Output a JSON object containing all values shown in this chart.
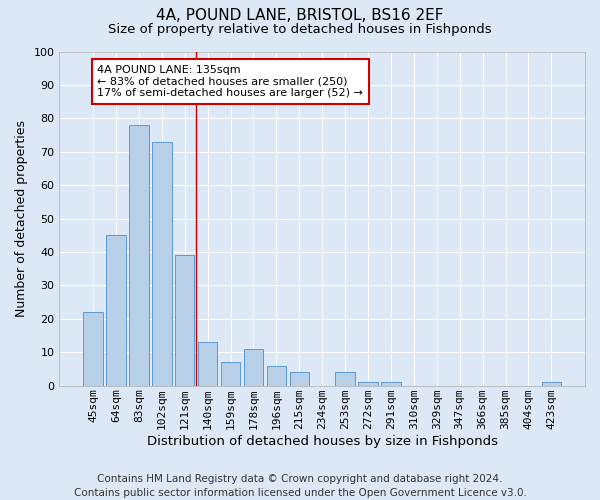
{
  "title": "4A, POUND LANE, BRISTOL, BS16 2EF",
  "subtitle": "Size of property relative to detached houses in Fishponds",
  "xlabel": "Distribution of detached houses by size in Fishponds",
  "ylabel": "Number of detached properties",
  "categories": [
    "45sqm",
    "64sqm",
    "83sqm",
    "102sqm",
    "121sqm",
    "140sqm",
    "159sqm",
    "178sqm",
    "196sqm",
    "215sqm",
    "234sqm",
    "253sqm",
    "272sqm",
    "291sqm",
    "310sqm",
    "329sqm",
    "347sqm",
    "366sqm",
    "385sqm",
    "404sqm",
    "423sqm"
  ],
  "values": [
    22,
    45,
    78,
    73,
    39,
    13,
    7,
    11,
    6,
    4,
    0,
    4,
    1,
    1,
    0,
    0,
    0,
    0,
    0,
    0,
    1
  ],
  "bar_color": "#b8cfe8",
  "bar_edge_color": "#5b9bd5",
  "background_color": "#dce8f5",
  "grid_color": "#ffffff",
  "annotation_box_color": "#ffffff",
  "annotation_box_edge": "#cc0000",
  "vline_color": "#cc0000",
  "vline_x_idx": 4.5,
  "annotation_text_line1": "4A POUND LANE: 135sqm",
  "annotation_text_line2": "← 83% of detached houses are smaller (250)",
  "annotation_text_line3": "17% of semi-detached houses are larger (52) →",
  "footer_line1": "Contains HM Land Registry data © Crown copyright and database right 2024.",
  "footer_line2": "Contains public sector information licensed under the Open Government Licence v3.0.",
  "ylim": [
    0,
    100
  ],
  "yticks": [
    0,
    10,
    20,
    30,
    40,
    50,
    60,
    70,
    80,
    90,
    100
  ],
  "title_fontsize": 11,
  "subtitle_fontsize": 9.5,
  "xlabel_fontsize": 9.5,
  "ylabel_fontsize": 9,
  "footer_fontsize": 7.5,
  "tick_fontsize": 8,
  "ann_fontsize": 8
}
